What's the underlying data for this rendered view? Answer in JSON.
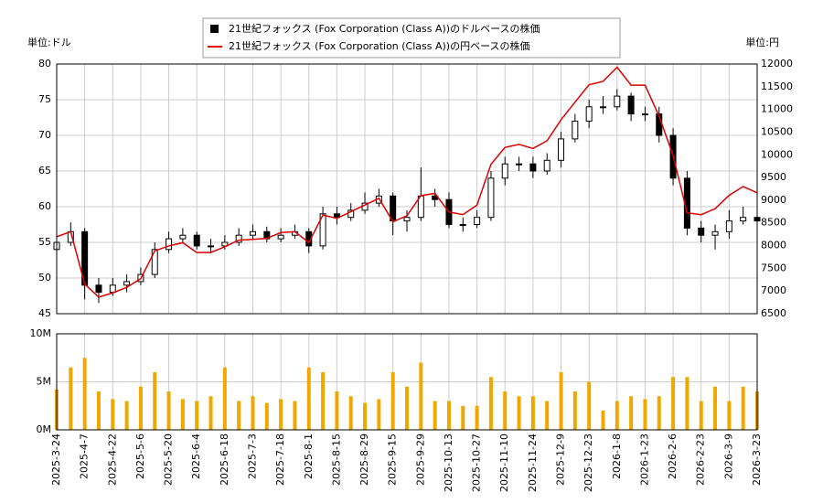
{
  "chart_data": [
    {
      "type": "candlestick",
      "y_label": "単位:ドル",
      "y2_label": "単位:円",
      "series": [
        {
          "name": "21世紀フォックス (Fox Corporation (Class A))のドルベースの株価",
          "color": "#000000",
          "open": [
            54,
            55,
            56.5,
            49,
            48,
            49,
            49.5,
            50.5,
            54,
            55.5,
            56,
            54.5,
            54.5,
            55,
            56,
            56.5,
            55.5,
            56,
            56.5,
            54.5,
            59,
            58.5,
            59.5,
            60.5,
            61.5,
            58,
            58.5,
            61.5,
            61,
            57.5,
            57.5,
            58.5,
            64,
            66,
            66,
            65,
            66.5,
            69.5,
            72,
            74,
            74,
            75.5,
            73,
            73,
            70,
            64,
            57,
            56,
            56.5,
            58,
            58.5
          ],
          "high": [
            56,
            57.8,
            57,
            50,
            50,
            50.5,
            51.5,
            55,
            56.5,
            57,
            56.5,
            55.5,
            56,
            57,
            57.5,
            57.2,
            57,
            57.5,
            57,
            60,
            60,
            60.5,
            62,
            62.5,
            62,
            59.5,
            65.5,
            62.5,
            62,
            58.5,
            59.5,
            65,
            67,
            67,
            67,
            67.5,
            70.5,
            73,
            75,
            75.5,
            76.5,
            76,
            74,
            74,
            71,
            65,
            58,
            57.5,
            59.5,
            60,
            59.5
          ],
          "low": [
            53,
            54.5,
            47,
            46.5,
            47.5,
            48,
            49,
            50,
            53.5,
            55,
            54,
            53.5,
            54,
            54.5,
            55.5,
            55,
            55,
            55.5,
            53.5,
            54,
            57.5,
            58,
            59,
            60,
            56,
            56.5,
            58,
            60,
            57,
            56.5,
            57,
            58,
            63,
            65,
            64,
            64.5,
            65.5,
            69,
            71,
            73,
            73.5,
            72,
            72,
            69,
            63,
            56,
            55,
            54,
            55.5,
            57.5,
            57
          ],
          "close": [
            55,
            56.5,
            49,
            48,
            49,
            49.5,
            50.5,
            54,
            55.5,
            56,
            54.5,
            54.5,
            55,
            56,
            56.5,
            55.5,
            56,
            56.5,
            54.5,
            59,
            58.5,
            59.5,
            60.5,
            61.5,
            58,
            58.5,
            61.5,
            61,
            57.5,
            57.5,
            58.5,
            64,
            66,
            66,
            65,
            66.5,
            69.5,
            72,
            74,
            74,
            75.5,
            73,
            73,
            70,
            64,
            57,
            56,
            56.5,
            58,
            58.5,
            58
          ]
        },
        {
          "name": "21世紀フォックス (Fox Corporation (Class A))の円ベースの株価",
          "color": "#dd0000",
          "axis": "y2",
          "values": [
            8195,
            8306,
            7154,
            6864,
            6958,
            7079,
            7272,
            7884,
            7992,
            8064,
            7848,
            7848,
            7975,
            8120,
            8136,
            8159,
            8288,
            8306,
            8066,
            8673,
            8600,
            8747,
            8894,
            9041,
            8526,
            8658,
            9102,
            9150,
            8740,
            8683,
            8892,
            9792,
            10164,
            10230,
            10140,
            10308,
            10773,
            11160,
            11544,
            11618,
            11929,
            11534,
            11534,
            10850,
            9984,
            8721,
            8680,
            8814,
            9106,
            9302,
            9164
          ]
        }
      ],
      "ylim": [
        45,
        80
      ],
      "yticks": [
        45,
        50,
        55,
        60,
        65,
        70,
        75,
        80
      ],
      "y2lim": [
        6500,
        12000
      ],
      "y2ticks": [
        6500,
        7000,
        7500,
        8000,
        8500,
        9000,
        9500,
        10000,
        10500,
        11000,
        11500,
        12000
      ],
      "grid": true
    },
    {
      "type": "bar",
      "categories": [
        "2025-3-24",
        null,
        "2025-4-7",
        null,
        "2025-4-22",
        null,
        "2025-5-6",
        null,
        "2025-5-20",
        null,
        "2025-6-4",
        null,
        "2025-6-18",
        null,
        "2025-7-3",
        null,
        "2025-7-18",
        null,
        "2025-8-1",
        null,
        "2025-8-15",
        null,
        "2025-8-29",
        null,
        "2025-9-15",
        null,
        "2025-9-29",
        null,
        "2025-10-13",
        null,
        "2025-10-27",
        null,
        "2025-11-10",
        null,
        "2025-11-24",
        null,
        "2025-12-9",
        null,
        "2025-12-23",
        null,
        "2026-1-8",
        null,
        "2026-1-23",
        null,
        "2026-2-6",
        null,
        "2026-2-23",
        null,
        "2026-3-9",
        null,
        "2026-3-23"
      ],
      "values": [
        4200000,
        6500000,
        7500000,
        4000000,
        3200000,
        3000000,
        4500000,
        6000000,
        4000000,
        3200000,
        3000000,
        3500000,
        6500000,
        3000000,
        3500000,
        2800000,
        3200000,
        3000000,
        6500000,
        6000000,
        4000000,
        3500000,
        2800000,
        3200000,
        6000000,
        4500000,
        7000000,
        3000000,
        3000000,
        2500000,
        2500000,
        5500000,
        4000000,
        3500000,
        3500000,
        3000000,
        6000000,
        4000000,
        5000000,
        2000000,
        3000000,
        3500000,
        3200000,
        3500000,
        5500000,
        5500000,
        3000000,
        4500000,
        3000000,
        4500000,
        4000000
      ],
      "color": "#f0a800",
      "ylim": [
        0,
        10000000
      ],
      "yticks": [
        {
          "value": 0,
          "label": "0M"
        },
        {
          "value": 5000000,
          "label": "5M"
        },
        {
          "value": 10000000,
          "label": "10M"
        }
      ],
      "grid": true
    }
  ]
}
